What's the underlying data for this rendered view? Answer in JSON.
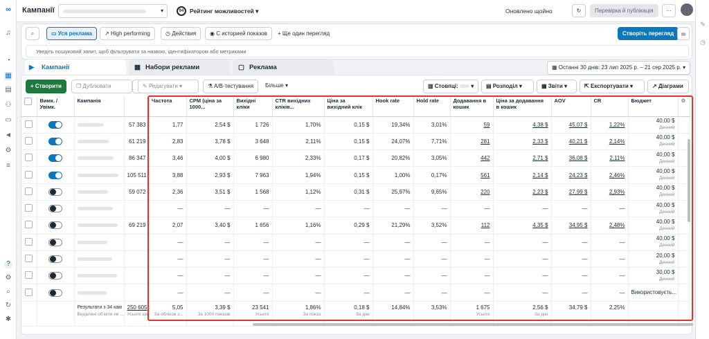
{
  "topbar": {
    "title": "Кампанії",
    "score": "94",
    "score_label": "Рейтинг можливостей",
    "updated": "Оновлено щойно",
    "review": "Перевірка й публікація",
    "more": "···"
  },
  "filters": {
    "all_ads": "Уся реклама",
    "high": "High performing",
    "actions": "Действия",
    "history": "С историей показов",
    "more_view": "+ Ще один перегляд",
    "create_view": "Створіть перегляд",
    "search_placeholder": "Уведіть пошуковий запит, щоб фільтрувати за назвою, ідентифікатором або метриками"
  },
  "tabs": {
    "campaigns": "Кампанії",
    "adsets": "Набори реклами",
    "ads": "Реклама",
    "date_range": "Останні 30 днів: 23 лип 2025 р. – 21 сер 2025 р."
  },
  "toolbar": {
    "create": "+  Створити",
    "duplicate": "Дублювати",
    "edit": "Редагувати",
    "ab": "A/B-тестування",
    "more": "Більше",
    "columns": "Стовпці:",
    "breakdown": "Розподіл",
    "reports": "Звіти",
    "export": "Експортувати",
    "charts": "Діаграми"
  },
  "left_headers": {
    "toggle": "Вимк. / Увімк.",
    "campaign": "Кампанія"
  },
  "left_rows": [
    {
      "on": true,
      "val": "57 383"
    },
    {
      "on": true,
      "val": "61 219"
    },
    {
      "on": true,
      "val": "86 347"
    },
    {
      "on": true,
      "val": "105 511"
    },
    {
      "on": false,
      "val": "59 072"
    },
    {
      "on": false,
      "val": ""
    },
    {
      "on": false,
      "val": "69 219"
    },
    {
      "on": false,
      "val": ""
    },
    {
      "on": false,
      "val": ""
    },
    {
      "on": false,
      "val": ""
    },
    {
      "on": false,
      "val": ""
    }
  ],
  "left_total": {
    "label": "Результати з 34 кам",
    "sub": "Видалені об'єкти не ...",
    "val": "250 605",
    "valsub": "Усього записі..."
  },
  "headers": [
    "Частота",
    "CPM (ціна за 1000...",
    "Вихідні кліки",
    "CTR вихідних кліків...",
    "Ціна за вихідний клік",
    "Hook rate",
    "Hold rate",
    "Додавання в кошик",
    "Ціна за додавання в кошик",
    "AOV",
    "CR",
    "Бюджет"
  ],
  "rows": [
    [
      "1,77",
      "2,54 $",
      "1 726",
      "1,70%",
      "0,15 $",
      "19,34%",
      "3,01%",
      "59",
      "4,38 $",
      "45,07 $",
      "1,22%",
      "40,00 $"
    ],
    [
      "2,83",
      "3,78 $",
      "3 648",
      "2,11%",
      "0,15 $",
      "24,07%",
      "7,71%",
      "281",
      "2,33 $",
      "40,21 $",
      "2,14%",
      "40,00 $"
    ],
    [
      "3,46",
      "4,00 $",
      "6 980",
      "2,33%",
      "0,17 $",
      "20,82%",
      "3,05%",
      "442",
      "2,71 $",
      "36,08 $",
      "2,11%",
      "40,00 $"
    ],
    [
      "3,88",
      "2,93 $",
      "7 963",
      "1,94%",
      "0,15 $",
      "1,00%",
      "0,17%",
      "561",
      "2,14 $",
      "24,23 $",
      "2,46%",
      "40,00 $"
    ],
    [
      "2,36",
      "3,51 $",
      "1 568",
      "1,12%",
      "0,31 $",
      "25,97%",
      "9,65%",
      "220",
      "2,23 $",
      "27,99 $",
      "2,93%",
      "40,00 $"
    ],
    [
      "—",
      "—",
      "—",
      "—",
      "—",
      "—",
      "—",
      "—",
      "—",
      "—",
      "—",
      "40,00 $"
    ],
    [
      "2,07",
      "3,40 $",
      "1 656",
      "1,16%",
      "0,29 $",
      "21,29%",
      "3,52%",
      "112",
      "4,35 $",
      "34,95 $",
      "2,48%",
      "40,00 $"
    ],
    [
      "—",
      "—",
      "—",
      "—",
      "—",
      "—",
      "—",
      "—",
      "—",
      "—",
      "—",
      "40,00 $"
    ],
    [
      "—",
      "—",
      "—",
      "—",
      "—",
      "—",
      "—",
      "—",
      "—",
      "—",
      "—",
      "20,00 $"
    ],
    [
      "—",
      "—",
      "—",
      "—",
      "—",
      "—",
      "—",
      "—",
      "—",
      "—",
      "—",
      "30,00 $"
    ],
    [
      "—",
      "—",
      "—",
      "—",
      "—",
      "—",
      "—",
      "—",
      "—",
      "—",
      "—",
      "Використовуєть..."
    ]
  ],
  "budget_sub": "Денний",
  "total": [
    [
      "5,05",
      "За обліков з..."
    ],
    [
      "3,39 $",
      "За 1000 показів"
    ],
    [
      "23 541",
      "Усього"
    ],
    [
      "1,86%",
      "За показ"
    ],
    [
      "0,18 $",
      "За дію"
    ],
    [
      "14,84%",
      ""
    ],
    [
      "3,53%",
      ""
    ],
    [
      "1 675",
      "Усього"
    ],
    [
      "2,56 $",
      "За дію"
    ],
    [
      "34,79 $",
      ""
    ],
    [
      "2,25%",
      ""
    ],
    [
      "",
      ""
    ]
  ]
}
